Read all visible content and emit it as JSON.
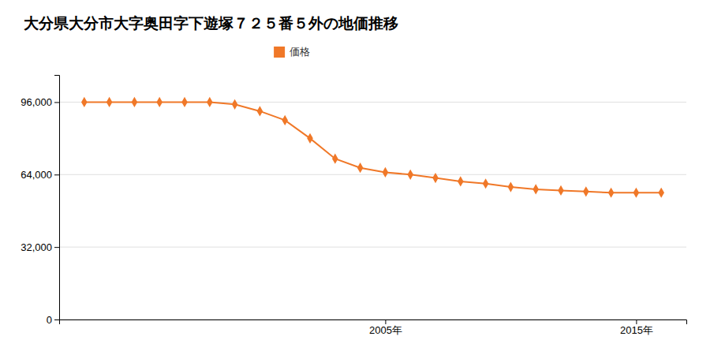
{
  "chart_data": {
    "type": "line",
    "title": "大分県大分市大字奥田字下遊塚７２５番５外の地価推移",
    "x": [
      1993,
      1994,
      1995,
      1996,
      1997,
      1998,
      1999,
      2000,
      2001,
      2002,
      2003,
      2004,
      2005,
      2006,
      2007,
      2008,
      2009,
      2010,
      2011,
      2012,
      2013,
      2014,
      2015,
      2016
    ],
    "series": [
      {
        "name": "価格",
        "color": "#f07828",
        "marker": "diamond",
        "values": [
          96000,
          96000,
          96000,
          96000,
          96000,
          96000,
          95000,
          92000,
          88000,
          80000,
          71000,
          67000,
          65000,
          64000,
          62500,
          61000,
          60000,
          58500,
          57500,
          57000,
          56500,
          56000,
          56000,
          56000
        ]
      }
    ],
    "xlim": [
      1992,
      2017
    ],
    "xticks": [
      {
        "value": 2005,
        "label": "2005年"
      },
      {
        "value": 2015,
        "label": "2015年"
      }
    ],
    "ylim": [
      0,
      108000
    ],
    "yticks": [
      0,
      {
        "value": 32000,
        "label": "32,000"
      },
      {
        "value": 64000,
        "label": "64,000"
      },
      {
        "value": 96000,
        "label": "96,000"
      }
    ],
    "grid": true,
    "legend": "top"
  }
}
